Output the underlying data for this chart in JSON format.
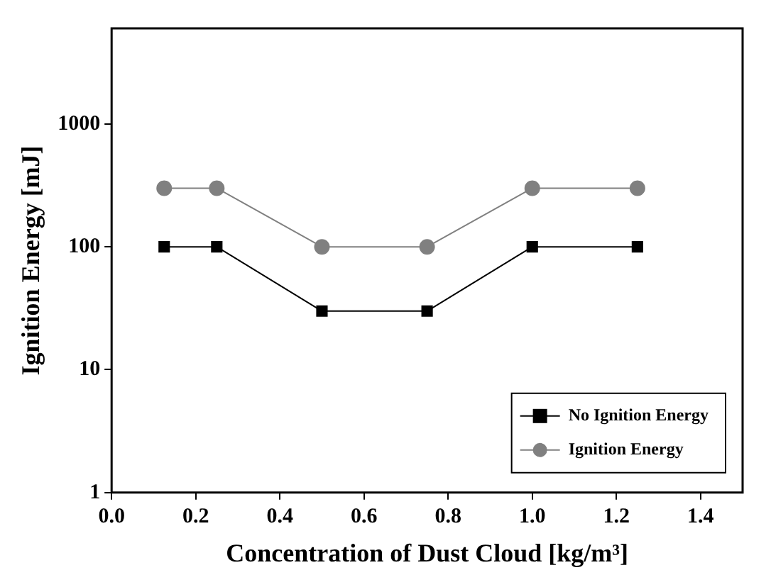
{
  "chart_data": {
    "type": "line",
    "xlabel": "Concentration of Dust Cloud [kg/m³]",
    "ylabel": "Ignition Energy [mJ]",
    "x": [
      0.125,
      0.25,
      0.5,
      0.75,
      1.0,
      1.25
    ],
    "series": [
      {
        "name": "No Ignition Energy",
        "color": "#000000",
        "marker": "square",
        "values": [
          100,
          100,
          30,
          30,
          100,
          100
        ]
      },
      {
        "name": "Ignition Energy",
        "color": "#808080",
        "marker": "circle",
        "values": [
          300,
          300,
          100,
          100,
          300,
          300
        ]
      }
    ],
    "log": "y",
    "xlim": [
      0,
      1.5
    ],
    "ylim": [
      1,
      6000
    ],
    "xticks": [
      {
        "value": 0,
        "label": "0.0"
      },
      {
        "value": 0.2,
        "label": "0.2"
      },
      {
        "value": 0.4,
        "label": "0.4"
      },
      {
        "value": 0.6,
        "label": "0.6"
      },
      {
        "value": 0.8,
        "label": "0.8"
      },
      {
        "value": 1.0,
        "label": "1.0"
      },
      {
        "value": 1.2,
        "label": "1.2"
      },
      {
        "value": 1.4,
        "label": "1.4"
      }
    ],
    "yticks": [
      1,
      10,
      100,
      1000
    ],
    "grid": false,
    "legend": "bottom right",
    "line_style": "solid"
  }
}
